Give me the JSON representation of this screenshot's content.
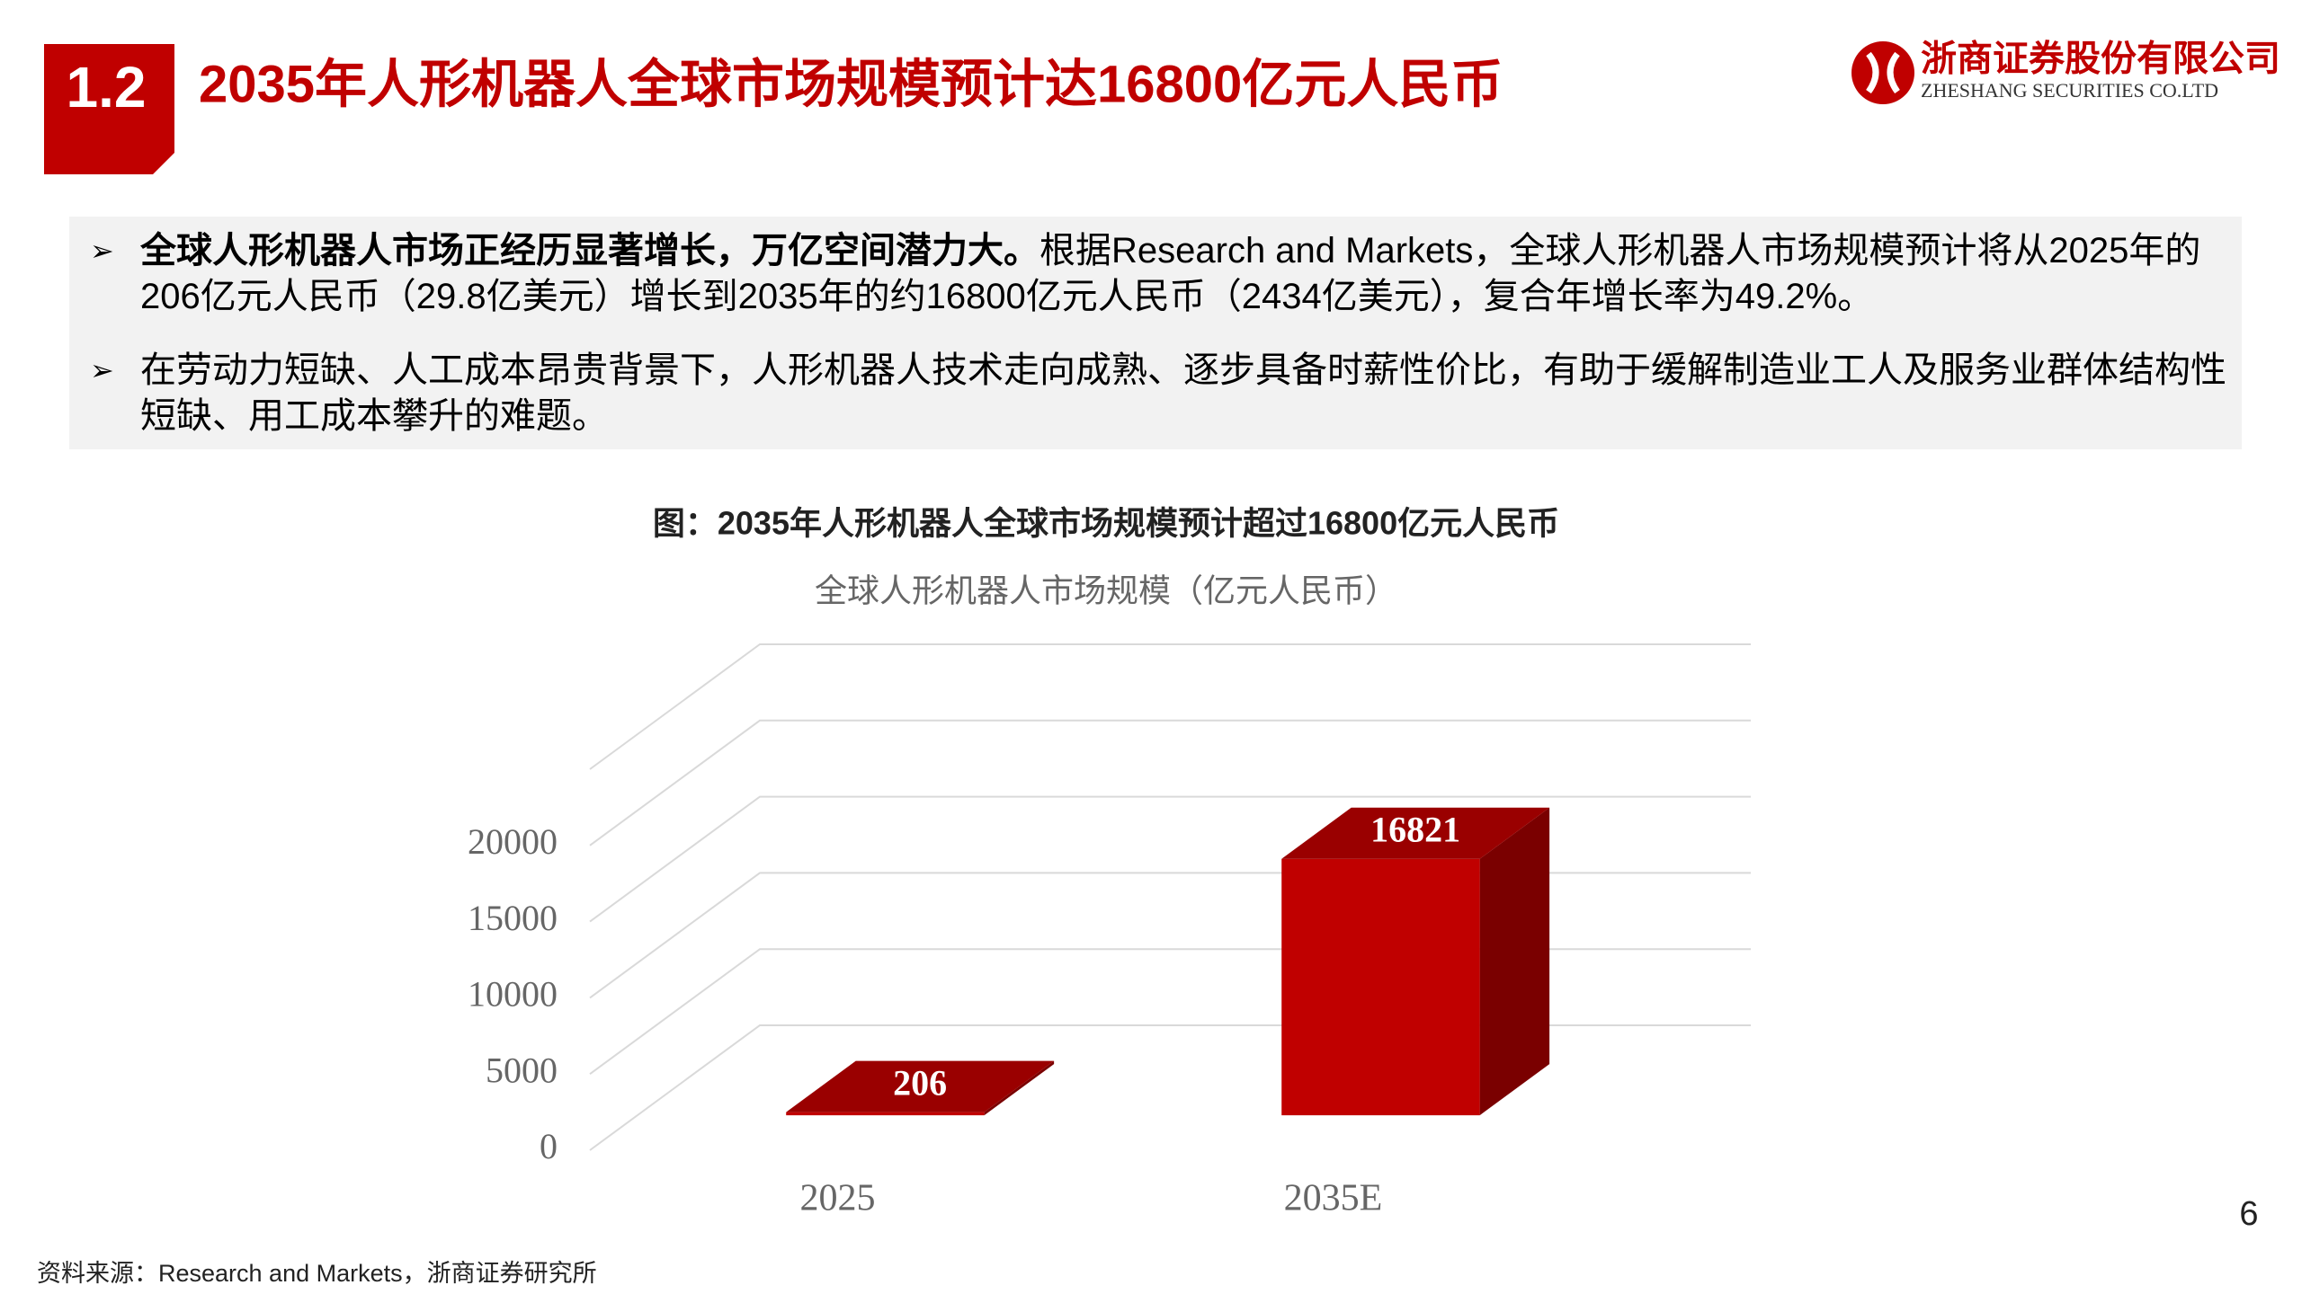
{
  "header": {
    "section": "1.2",
    "title": "2035年人形机器人全球市场规模预计达16800亿元人民币"
  },
  "logo": {
    "name": "浙商证券股份有限公司",
    "name_en": "ZHESHANG SECURITIES CO.LTD"
  },
  "bullets": [
    {
      "bold": "全球人形机器人市场正经历显著增长，万亿空间潜力大。",
      "text": "根据Research and Markets，全球人形机器人市场规模预计将从2025年的206亿元人民币（29.8亿美元）增长到2035年的约16800亿元人民币（2434亿美元），复合年增长率为49.2%。"
    },
    {
      "text": "在劳动力短缺、人工成本昂贵背景下，人形机器人技术走向成熟、逐步具备时薪性价比，有助于缓解制造业工人及服务业群体结构性短缺、用工成本攀升的难题。"
    }
  ],
  "figure_title": "图：2035年人形机器人全球市场规模预计超过16800亿元人民币",
  "chart_data": {
    "type": "bar",
    "title": "全球人形机器人市场规模（亿元人民币）",
    "categories": [
      "2025",
      "2035E"
    ],
    "values": [
      206,
      16821
    ],
    "color": "#c00000",
    "ylim": [
      0,
      25000
    ],
    "yticks": [
      0,
      5000,
      10000,
      15000,
      20000
    ],
    "grid": true
  },
  "source": "资料来源：Research and Markets，浙商证券研究所",
  "page_number": 6
}
